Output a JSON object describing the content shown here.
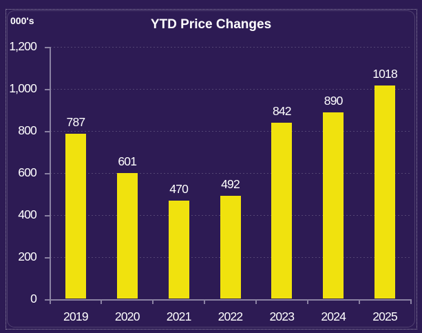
{
  "chart_data": {
    "type": "bar",
    "title": "YTD Price Changes",
    "unit_label": "000's",
    "categories": [
      "2019",
      "2020",
      "2021",
      "2022",
      "2023",
      "2024",
      "2025"
    ],
    "values": [
      787,
      601,
      470,
      492,
      842,
      890,
      1018
    ],
    "value_labels": [
      "787",
      "601",
      "470",
      "492",
      "842",
      "890",
      "1018"
    ],
    "xlabel": "",
    "ylabel": "000's",
    "ylim": [
      0,
      1200
    ],
    "ytick_step": 200,
    "ytick_labels": [
      "0",
      "200",
      "400",
      "600",
      "800",
      "1,000",
      "1,200"
    ],
    "grid": "horizontal-dotted",
    "legend": "none",
    "colors": {
      "background": "#2D1B54",
      "bar": "#F0E20E",
      "text": "#FFFFFF",
      "axis": "#8B82A3",
      "frame_dotted": "#9C95AE"
    }
  }
}
